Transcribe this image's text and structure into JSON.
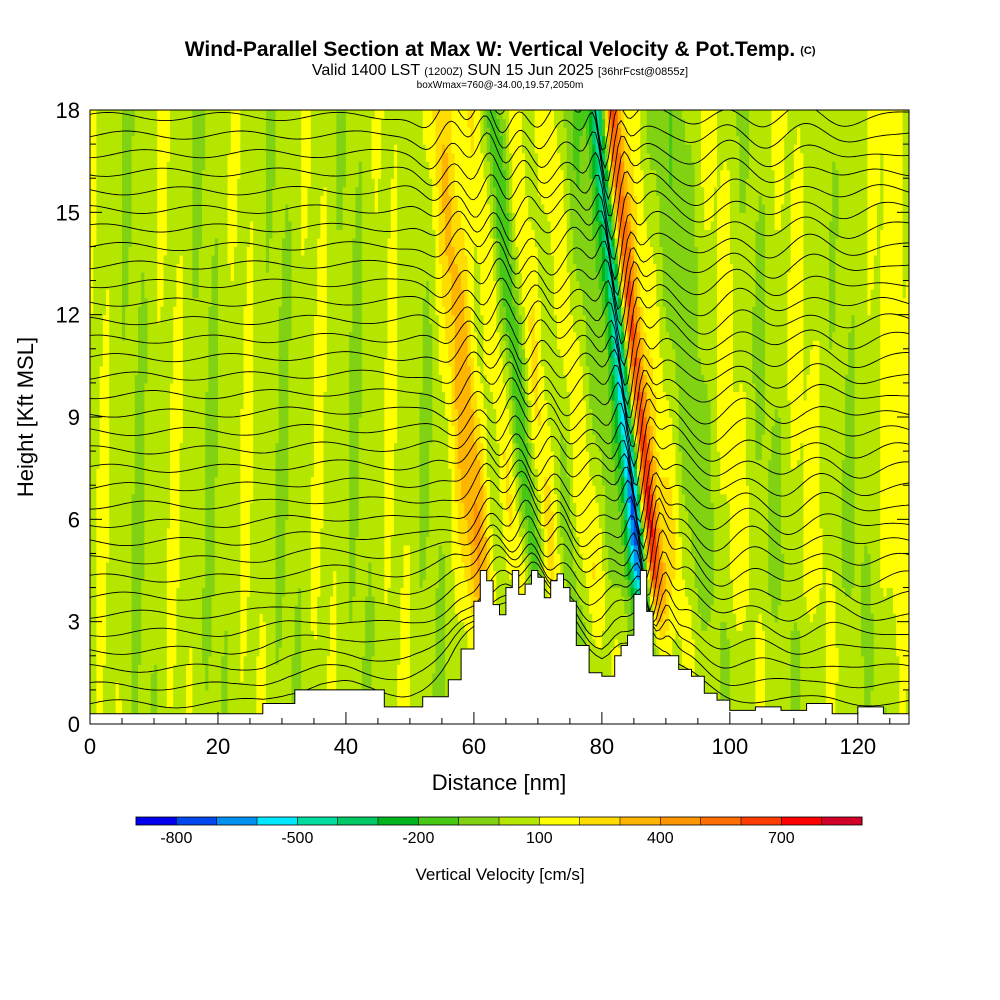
{
  "chart_data": {
    "type": "heatmap",
    "title": "Wind-Parallel Section at Max W: Vertical Velocity & Pot.Temp.",
    "copyright_mark": "(C)",
    "subtitle": {
      "valid_prefix": "Valid 1400 LST",
      "zulu": "(1200Z)",
      "date": "SUN 15 Jun 2025",
      "forecast": "[36hrFcst@0855z]"
    },
    "subtitle2": "boxWmax=760@-34.00,19.57,2050m",
    "xlabel": "Distance [nm]",
    "ylabel": "Height [Kft MSL]",
    "xlim": [
      0,
      128
    ],
    "ylim": [
      0,
      18
    ],
    "x_ticks": [
      "0",
      "20",
      "40",
      "60",
      "80",
      "100",
      "120"
    ],
    "y_ticks": [
      "0",
      "3",
      "6",
      "9",
      "12",
      "15",
      "18"
    ],
    "colorbar": {
      "title": "Vertical Velocity [cm/s]",
      "labels": [
        "-800",
        "-500",
        "-200",
        "100",
        "400",
        "700"
      ],
      "label_values": [
        -800,
        -500,
        -200,
        100,
        400,
        700
      ],
      "range": [
        -900,
        900
      ],
      "colors": [
        "#0000ee",
        "#0048ee",
        "#0090f0",
        "#00e8ff",
        "#00dca0",
        "#00c864",
        "#00b41e",
        "#46c814",
        "#82d214",
        "#b4e600",
        "#ffff00",
        "#ffdc00",
        "#ffb400",
        "#ff9600",
        "#ff6e00",
        "#ff3c00",
        "#ff0000",
        "#d20028"
      ]
    },
    "terrain_profile": {
      "x": [
        0,
        26,
        27,
        31,
        32,
        44,
        46,
        52,
        56,
        58,
        60,
        61,
        62,
        63,
        64,
        65,
        66,
        67,
        68,
        69,
        70,
        71,
        72,
        73,
        74,
        75,
        76,
        78,
        80,
        82,
        83,
        84,
        85,
        86,
        87,
        88,
        89,
        90,
        92,
        94,
        96,
        98,
        100,
        104,
        108,
        112,
        116,
        120,
        124,
        128
      ],
      "kft": [
        0.3,
        0.3,
        0.6,
        0.6,
        1.0,
        1.0,
        0.5,
        0.8,
        1.3,
        2.2,
        3.6,
        4.5,
        4.2,
        3.5,
        3.2,
        4.0,
        4.5,
        3.8,
        4.1,
        4.5,
        4.3,
        3.7,
        4.2,
        4.4,
        4.0,
        3.6,
        2.3,
        1.5,
        1.4,
        2.0,
        2.3,
        2.6,
        3.8,
        4.5,
        3.3,
        2.0,
        2.0,
        2.0,
        1.6,
        1.4,
        0.9,
        0.7,
        0.4,
        0.5,
        0.4,
        0.6,
        0.3,
        0.5,
        0.3,
        0.3
      ]
    },
    "wave_features": [
      {
        "x": 62,
        "amplitude_cms": 450,
        "width_nm": 2.2
      },
      {
        "x": 64,
        "amplitude_cms": -350,
        "width_nm": 1.8
      },
      {
        "x": 67,
        "amplitude_cms": 380,
        "width_nm": 1.8
      },
      {
        "x": 69.5,
        "amplitude_cms": -500,
        "width_nm": 1.6
      },
      {
        "x": 72,
        "amplitude_cms": 320,
        "width_nm": 1.8
      },
      {
        "x": 75,
        "amplitude_cms": -250,
        "width_nm": 2.0
      },
      {
        "x": 78,
        "amplitude_cms": 300,
        "width_nm": 2.2
      },
      {
        "x": 82,
        "amplitude_cms": -200,
        "width_nm": 2.2
      },
      {
        "x": 86,
        "amplitude_cms": -800,
        "width_nm": 1.1
      },
      {
        "x": 88,
        "amplitude_cms": 760,
        "width_nm": 1.0
      },
      {
        "x": 91,
        "amplitude_cms": 250,
        "width_nm": 2.0
      },
      {
        "x": 95,
        "amplitude_cms": -200,
        "width_nm": 3.0
      },
      {
        "x": 101,
        "amplitude_cms": 200,
        "width_nm": 3.0
      },
      {
        "x": 106,
        "amplitude_cms": -180,
        "width_nm": 3.0
      },
      {
        "x": 112,
        "amplitude_cms": 160,
        "width_nm": 3.0
      },
      {
        "x": 118,
        "amplitude_cms": -120,
        "width_nm": 3.0
      },
      {
        "x": 124,
        "amplitude_cms": 100,
        "width_nm": 3.0
      }
    ],
    "background_w_cms": 50,
    "theta_contour_count": 34
  }
}
